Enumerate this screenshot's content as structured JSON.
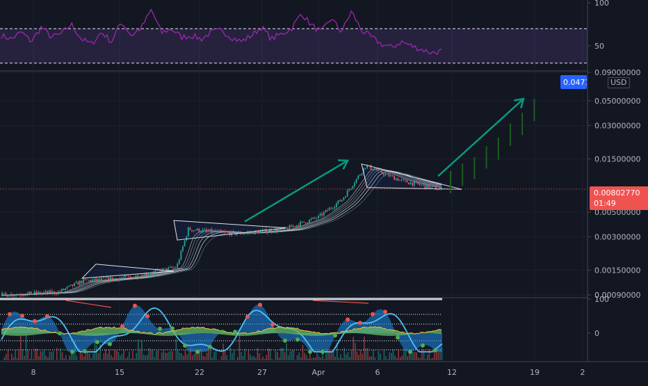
{
  "chart_data": {
    "type": "candlestick",
    "symbol_currency": "USD",
    "current_price_badge": "0.0471",
    "last_price_badge": "0.00802770",
    "countdown": "01:49",
    "price_axis": {
      "scale": "log",
      "ticks": [
        "0.09000000",
        "0.05000000",
        "0.03000000",
        "0.01500000",
        "0.00500000",
        "0.00300000",
        "0.00150000",
        "0.00090000"
      ]
    },
    "rsi_axis": {
      "ticks": [
        "100",
        "50"
      ],
      "upper_band": 70,
      "lower_band": 30
    },
    "oscillator_axis": {
      "ticks": [
        "100",
        "0"
      ]
    },
    "time_axis": {
      "ticks": [
        "8",
        "15",
        "22",
        "27",
        "Apr",
        "6",
        "12",
        "19",
        "2"
      ]
    },
    "price_series_approx": [
      {
        "t": "Mar 6",
        "close": 0.0009
      },
      {
        "t": "Mar 10",
        "close": 0.00095
      },
      {
        "t": "Mar 12",
        "close": 0.0012
      },
      {
        "t": "Mar 16",
        "close": 0.0013
      },
      {
        "t": "Mar 20",
        "close": 0.0016
      },
      {
        "t": "Mar 21",
        "close": 0.0035
      },
      {
        "t": "Mar 25",
        "close": 0.0032
      },
      {
        "t": "Mar 29",
        "close": 0.0035
      },
      {
        "t": "Apr 1",
        "close": 0.0045
      },
      {
        "t": "Apr 3",
        "close": 0.0065
      },
      {
        "t": "Apr 5",
        "close": 0.013
      },
      {
        "t": "Apr 8",
        "close": 0.0095
      },
      {
        "t": "Apr 11",
        "close": 0.008
      }
    ],
    "projection_bars": [
      0.009,
      0.0105,
      0.012,
      0.015,
      0.018,
      0.024,
      0.03,
      0.04
    ],
    "rsi_series_approx": [
      62,
      58,
      66,
      55,
      72,
      60,
      64,
      75,
      58,
      52,
      66,
      55,
      78,
      62,
      71,
      92,
      65,
      70,
      60,
      62,
      58,
      66,
      68,
      60,
      55,
      62,
      72,
      58,
      64,
      70,
      88,
      74,
      66,
      82,
      66,
      90,
      68,
      60,
      52,
      48,
      55,
      50,
      46,
      42,
      44
    ]
  }
}
